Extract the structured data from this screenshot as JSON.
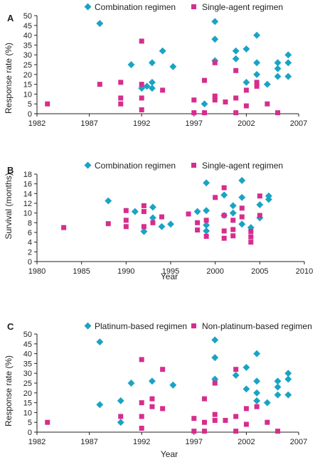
{
  "colors": {
    "series_a": "#1aa3c4",
    "series_b": "#d62d8e",
    "axis": "#222222"
  },
  "icons": {
    "series_a": "diamond",
    "series_b": "square"
  },
  "chart_data": [
    {
      "type": "scatter",
      "panel_label": "A",
      "xlabel": "",
      "ylabel": "Response rate (%)",
      "xlim": [
        1982,
        2007
      ],
      "ylim": [
        0,
        50
      ],
      "x_ticks": [
        1982,
        1987,
        1992,
        1997,
        2002,
        2007
      ],
      "y_ticks": [
        0,
        5,
        10,
        15,
        20,
        25,
        30,
        35,
        40,
        45,
        50
      ],
      "legend_position": "top",
      "series": [
        {
          "name": "Combination regimen",
          "marker": "diamond",
          "points": [
            [
              1988,
              46
            ],
            [
              1991,
              25
            ],
            [
              1992,
              13
            ],
            [
              1992.5,
              14
            ],
            [
              1993,
              16
            ],
            [
              1993,
              26
            ],
            [
              1993,
              13
            ],
            [
              1994,
              32
            ],
            [
              1995,
              24
            ],
            [
              1998,
              5
            ],
            [
              1999,
              47
            ],
            [
              1999,
              38
            ],
            [
              1999,
              27
            ],
            [
              2001,
              32
            ],
            [
              2001,
              28
            ],
            [
              2002,
              33
            ],
            [
              2002,
              16
            ],
            [
              2003,
              40
            ],
            [
              2003,
              26
            ],
            [
              2003,
              20
            ],
            [
              2004,
              15
            ],
            [
              2005,
              26
            ],
            [
              2005,
              23
            ],
            [
              2005,
              19
            ],
            [
              2006,
              30
            ],
            [
              2006,
              26
            ],
            [
              2006,
              19
            ]
          ]
        },
        {
          "name": "Single-agent regimen",
          "marker": "square",
          "points": [
            [
              1983,
              5
            ],
            [
              1988,
              15
            ],
            [
              1990,
              16
            ],
            [
              1990,
              8
            ],
            [
              1990,
              5
            ],
            [
              1992,
              37
            ],
            [
              1992,
              15
            ],
            [
              1992,
              8
            ],
            [
              1992,
              2
            ],
            [
              1994,
              12
            ],
            [
              1997,
              7
            ],
            [
              1997,
              0.5
            ],
            [
              1998,
              17
            ],
            [
              1998,
              0.5
            ],
            [
              1999,
              26
            ],
            [
              1999,
              9
            ],
            [
              1999,
              7
            ],
            [
              2000,
              6
            ],
            [
              2001,
              22
            ],
            [
              2001,
              8
            ],
            [
              2001,
              0.5
            ],
            [
              2002,
              12
            ],
            [
              2002,
              4
            ],
            [
              2003,
              16
            ],
            [
              2003,
              14
            ],
            [
              2004,
              5
            ],
            [
              2005,
              0.5
            ]
          ]
        }
      ]
    },
    {
      "type": "scatter",
      "panel_label": "B",
      "xlabel": "Year",
      "ylabel": "Survival (months)",
      "xlim": [
        1980,
        2010
      ],
      "ylim": [
        0,
        18
      ],
      "x_ticks": [
        1980,
        1985,
        1990,
        1995,
        2000,
        2005,
        2010
      ],
      "y_ticks": [
        0,
        2,
        4,
        6,
        8,
        10,
        12,
        14,
        16,
        18
      ],
      "legend_position": "top",
      "series": [
        {
          "name": "Combination regimen",
          "marker": "diamond",
          "points": [
            [
              1988,
              12.5
            ],
            [
              1991,
              10.3
            ],
            [
              1992,
              6.2
            ],
            [
              1993,
              11.2
            ],
            [
              1993,
              9
            ],
            [
              1994,
              7.2
            ],
            [
              1995,
              7.7
            ],
            [
              1998,
              10.3
            ],
            [
              1999,
              16.2
            ],
            [
              1999,
              10.5
            ],
            [
              1999,
              7.5
            ],
            [
              1999,
              6.3
            ],
            [
              2001,
              13.7
            ],
            [
              2001,
              9.5
            ],
            [
              2002,
              11.5
            ],
            [
              2002,
              10
            ],
            [
              2003,
              16.7
            ],
            [
              2003,
              13.2
            ],
            [
              2003,
              7.7
            ],
            [
              2004,
              7
            ],
            [
              2005,
              11.7
            ],
            [
              2005,
              9
            ],
            [
              2006,
              13.5
            ],
            [
              2006,
              12.8
            ]
          ]
        },
        {
          "name": "Single-agent regimen",
          "marker": "square",
          "points": [
            [
              1983,
              7
            ],
            [
              1988,
              7.8
            ],
            [
              1990,
              10.5
            ],
            [
              1990,
              8.5
            ],
            [
              1990,
              7.2
            ],
            [
              1992,
              11.5
            ],
            [
              1992,
              10.3
            ],
            [
              1992,
              7.2
            ],
            [
              1993,
              8
            ],
            [
              1994,
              9.2
            ],
            [
              1997,
              9.8
            ],
            [
              1998,
              8
            ],
            [
              1998,
              6.5
            ],
            [
              1999,
              8.5
            ],
            [
              1999,
              5.2
            ],
            [
              2000,
              13.2
            ],
            [
              2001,
              15.2
            ],
            [
              2001,
              9.5
            ],
            [
              2001,
              6.3
            ],
            [
              2001,
              4.8
            ],
            [
              2002,
              8.5
            ],
            [
              2002,
              6.6
            ],
            [
              2002,
              5.3
            ],
            [
              2003,
              11
            ],
            [
              2003,
              9.2
            ],
            [
              2004,
              6.2
            ],
            [
              2004,
              5.1
            ],
            [
              2004,
              4
            ],
            [
              2005,
              13.5
            ],
            [
              2005,
              9.5
            ]
          ]
        }
      ]
    },
    {
      "type": "scatter",
      "panel_label": "C",
      "xlabel": "Year",
      "ylabel": "Response rate (%)",
      "xlim": [
        1982,
        2007
      ],
      "ylim": [
        0,
        50
      ],
      "x_ticks": [
        1982,
        1987,
        1992,
        1997,
        2002,
        2007
      ],
      "y_ticks": [
        0,
        5,
        10,
        15,
        20,
        25,
        30,
        35,
        40,
        45,
        50
      ],
      "legend_position": "top",
      "series": [
        {
          "name": "Platinum-based regimen",
          "marker": "diamond",
          "points": [
            [
              1988,
              46
            ],
            [
              1988,
              14
            ],
            [
              1990,
              16
            ],
            [
              1990,
              5
            ],
            [
              1991,
              25
            ],
            [
              1993,
              26
            ],
            [
              1995,
              24
            ],
            [
              1999,
              47
            ],
            [
              1999,
              38
            ],
            [
              1999,
              27
            ],
            [
              2001,
              29
            ],
            [
              2002,
              33
            ],
            [
              2002,
              22
            ],
            [
              2003,
              40
            ],
            [
              2003,
              26
            ],
            [
              2003,
              20
            ],
            [
              2003,
              16
            ],
            [
              2004,
              15
            ],
            [
              2005,
              26
            ],
            [
              2005,
              23
            ],
            [
              2005,
              19
            ],
            [
              2006,
              30
            ],
            [
              2006,
              27
            ],
            [
              2006,
              19
            ]
          ]
        },
        {
          "name": "Non-platinum-based regimen",
          "marker": "square",
          "points": [
            [
              1983,
              5
            ],
            [
              1990,
              8
            ],
            [
              1992,
              37
            ],
            [
              1992,
              15
            ],
            [
              1992,
              8
            ],
            [
              1992,
              2
            ],
            [
              1993,
              17
            ],
            [
              1993,
              13
            ],
            [
              1994,
              32
            ],
            [
              1994,
              12
            ],
            [
              1997,
              7
            ],
            [
              1997,
              0.5
            ],
            [
              1998,
              17
            ],
            [
              1998,
              5
            ],
            [
              1998,
              0.5
            ],
            [
              1999,
              25
            ],
            [
              1999,
              9
            ],
            [
              1999,
              6
            ],
            [
              2000,
              6
            ],
            [
              2001,
              32
            ],
            [
              2001,
              8
            ],
            [
              2001,
              0.5
            ],
            [
              2002,
              12
            ],
            [
              2002,
              4
            ],
            [
              2003,
              13
            ],
            [
              2004,
              5
            ],
            [
              2005,
              0.5
            ]
          ]
        }
      ]
    }
  ]
}
